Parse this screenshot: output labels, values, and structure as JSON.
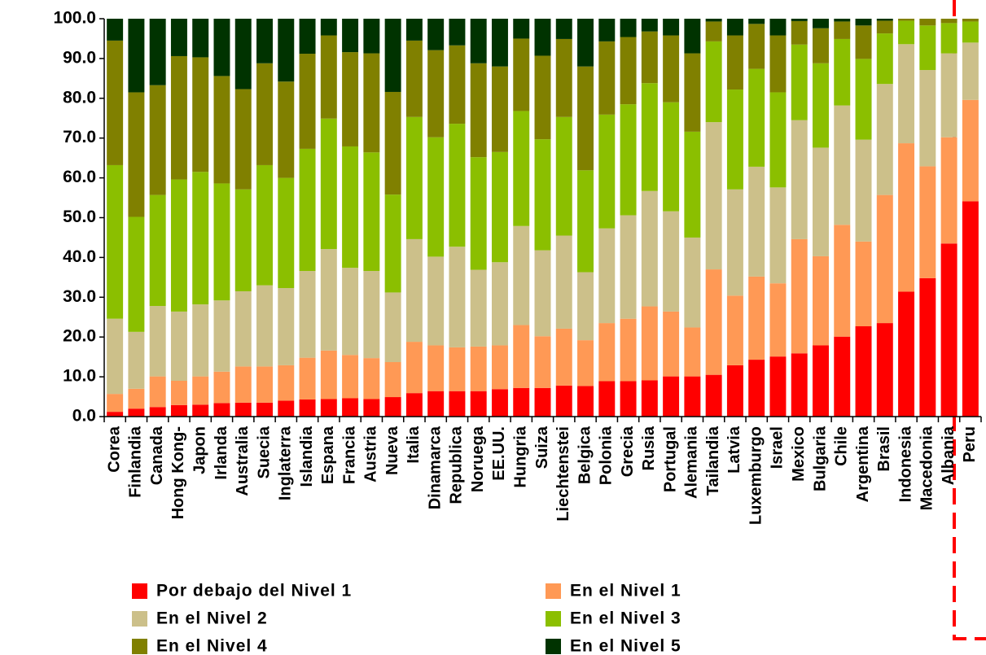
{
  "chart_data": {
    "type": "stacked_bar",
    "categories": [
      "Corea",
      "Finlandia",
      "Canada",
      "Hong Kong-",
      "Japon",
      "Irlanda",
      "Australia",
      "Suecia",
      "Inglaterra",
      "Islandia",
      "Espana",
      "Francia",
      "Austria",
      "Nueva",
      "Italia",
      "Dinamarca",
      "Republica",
      "Noruega",
      "EE.UU.",
      "Hungria",
      "Suiza",
      "Liechtenstei",
      "Belgica",
      "Polonia",
      "Grecia",
      "Rusia",
      "Portugal",
      "Alemania",
      "Tailandia",
      "Latvia",
      "Luxemburgo",
      "Israel",
      "Mexico",
      "Bulgaria",
      "Chile",
      "Argentina",
      "Brasil",
      "Indonesia",
      "Macedonia",
      "Albania",
      "Peru"
    ],
    "series": [
      {
        "name": "Por debajo del Nivel 1",
        "color": "#ff0000",
        "values": [
          1.2,
          2,
          2.4,
          2.9,
          3,
          3.4,
          3.5,
          3.5,
          4,
          4.3,
          4.4,
          4.6,
          4.4,
          4.9,
          5.9,
          6.4,
          6.4,
          6.4,
          6.9,
          7.2,
          7.2,
          7.8,
          7.7,
          8.9,
          8.9,
          9.1,
          10.1,
          10.1,
          10.5,
          12.9,
          14.3,
          15.1,
          15.9,
          17.9,
          20.1,
          22.7,
          23.5,
          31.4,
          34.8,
          43.5,
          54.1
        ]
      },
      {
        "name": "En el Nivel 1",
        "color": "#ff9955",
        "values": [
          4.5,
          5,
          7.7,
          6.1,
          7.1,
          7.9,
          9.1,
          9.1,
          8.9,
          10.5,
          12.2,
          10.9,
          10.3,
          8.8,
          12.9,
          11.5,
          11,
          11.2,
          11,
          15.8,
          13,
          14.3,
          11.5,
          14.6,
          15.7,
          18.6,
          16.3,
          12.3,
          26.5,
          17.5,
          20.9,
          18.4,
          28.7,
          22.4,
          28.1,
          21.3,
          32.2,
          37.3,
          28.1,
          26.7,
          25.5
        ]
      },
      {
        "name": "En el Nivel 2",
        "color": "#ccc08a",
        "values": [
          18.9,
          14.3,
          17.7,
          17.4,
          18.1,
          17.9,
          18.9,
          20.4,
          19.4,
          21.8,
          25.5,
          21.9,
          21.9,
          17.5,
          25.8,
          22.3,
          25.3,
          19.3,
          20.9,
          24.9,
          21.6,
          23.4,
          17.1,
          23.8,
          26,
          29,
          25.2,
          22.6,
          37,
          26.7,
          27.6,
          24.1,
          29.9,
          27.3,
          30,
          25.6,
          27.9,
          24.9,
          24.2,
          21.1,
          14.4
        ]
      },
      {
        "name": "En el Nivel 3",
        "color": "#8bbf00",
        "values": [
          38.6,
          28.9,
          27.9,
          33.2,
          33.3,
          29.4,
          25.6,
          30.2,
          27.7,
          30.7,
          32.8,
          30.5,
          29.8,
          24.6,
          30.7,
          30,
          30.9,
          28.3,
          27.7,
          28.9,
          27.9,
          29.8,
          25.6,
          28.6,
          27.9,
          27.1,
          27.4,
          26.6,
          20.3,
          25.1,
          24.6,
          23.9,
          19,
          21.2,
          16.7,
          20.3,
          12.7,
          5.9,
          11.2,
          7.6,
          5.3
        ]
      },
      {
        "name": "En el Nivel 4",
        "color": "#808000",
        "values": [
          31.3,
          31.3,
          27.6,
          31,
          28.8,
          27,
          25.2,
          25.6,
          24.2,
          23.9,
          20.9,
          23.7,
          24.9,
          25.8,
          19.2,
          21.9,
          19.7,
          23.6,
          21.5,
          18.2,
          21,
          19.6,
          26.1,
          18.4,
          16.9,
          13,
          16.8,
          19.7,
          5,
          13.6,
          11.3,
          14.3,
          5.9,
          8.8,
          4.4,
          8.4,
          3.2,
          0.5,
          1.7,
          1.1,
          0.7
        ]
      },
      {
        "name": "En el Nivel 5",
        "color": "#003300",
        "values": [
          5.5,
          18.5,
          16.7,
          9.4,
          9.7,
          14.4,
          17.7,
          11.2,
          15.8,
          8.8,
          4.2,
          8.4,
          8.7,
          18.4,
          5.5,
          7.9,
          6.7,
          11.2,
          12,
          5,
          9.3,
          5.1,
          12,
          5.7,
          4.6,
          3.2,
          4.2,
          8.7,
          0.7,
          4.2,
          1.3,
          4.2,
          0.6,
          2.4,
          0.7,
          1.7,
          0.5,
          0,
          0,
          0,
          0
        ]
      }
    ],
    "ylim": [
      0,
      100
    ],
    "yticks": [
      {
        "value": 0,
        "label": "0.0"
      },
      {
        "value": 10,
        "label": "10.0"
      },
      {
        "value": 20,
        "label": "20.0"
      },
      {
        "value": 30,
        "label": "30.0"
      },
      {
        "value": 40,
        "label": "40.0"
      },
      {
        "value": 50,
        "label": "50.0"
      },
      {
        "value": 60,
        "label": "60.0"
      },
      {
        "value": 70,
        "label": "70.0"
      },
      {
        "value": 80,
        "label": "80.0"
      },
      {
        "value": 90,
        "label": "90.0"
      },
      {
        "value": 100,
        "label": "100.0"
      }
    ],
    "legend": "bottom"
  }
}
